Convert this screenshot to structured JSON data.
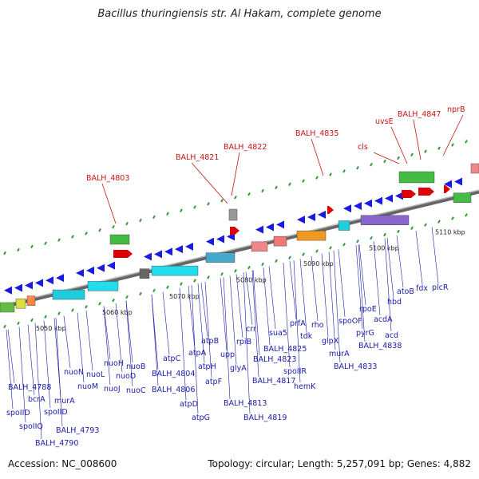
{
  "title": "Bacillus thuringiensis str. Al Hakam, complete genome",
  "footer": {
    "accession": "Accession: NC_008600",
    "summary": "Topology: circular; Length: 5,257,091 bp; Genes: 4,882"
  },
  "colors": {
    "forward_gene": "#dd0000",
    "reverse_gene": "#1a1ae0",
    "label_blue": "#1a1aa8",
    "label_red": "#cc1111",
    "backbone": "#888888",
    "tick": "#339933"
  },
  "scale_ticks": [
    "5050 kbp",
    "5060 kbp",
    "5070 kbp",
    "5080 kbp",
    "5090 kbp",
    "5100 kbp",
    "5110 kbp"
  ],
  "forward_labels": [
    "BALH_4803",
    "BALH_4821",
    "BALH_4822",
    "BALH_4835",
    "cls",
    "uvsE",
    "BALH_4847",
    "nprB"
  ],
  "reverse_labels": [
    "BALH_4788",
    "bcrA",
    "murA",
    "spoIID",
    "spoIID",
    "spoIIQ",
    "BALH_4793",
    "BALH_4790",
    "nuoN",
    "nuoM",
    "nuoL",
    "nuoJ",
    "nuoH",
    "nuoD",
    "nuoB",
    "nuoC",
    "atpC",
    "BALH_4804",
    "BALH_4806",
    "atpA",
    "atpB",
    "atpH",
    "upp",
    "atpD",
    "atpF",
    "BALH_4813",
    "atpG",
    "crr",
    "rpiB",
    "glyA",
    "BALH_4817",
    "BALH_4819",
    "BALH_4825",
    "sua5",
    "BALH_4823",
    "prfA",
    "rho",
    "tdk",
    "spoIIR",
    "hemK",
    "glpX",
    "spoOF",
    "murA",
    "BALH_4833",
    "rpoE",
    "pyrG",
    "acdA",
    "BALH_4838",
    "hbd",
    "acd",
    "atoB",
    "fdx",
    "plcR"
  ]
}
